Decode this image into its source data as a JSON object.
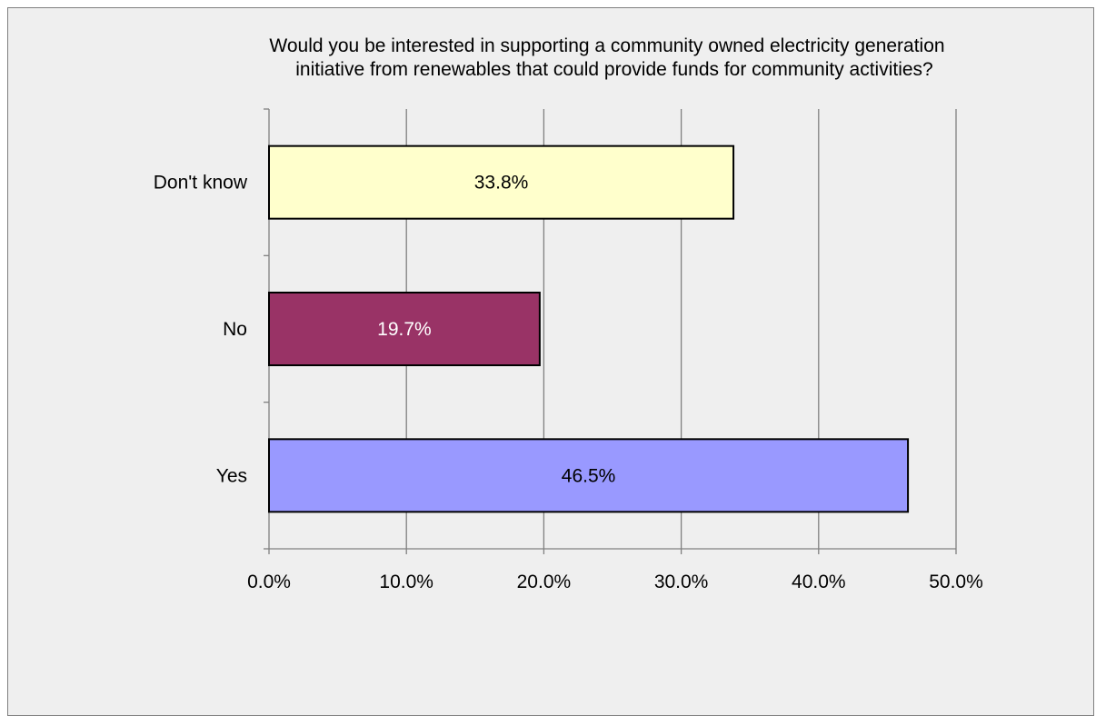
{
  "chart_data": {
    "type": "bar",
    "orientation": "horizontal",
    "title_lines": [
      "Would you be interested in supporting a community owned electricity generation",
      "initiative from renewables that could provide funds for community activities?"
    ],
    "categories": [
      "Don't know",
      "No",
      "Yes"
    ],
    "values": [
      33.8,
      19.7,
      46.5
    ],
    "value_labels": [
      "33.8%",
      "19.7%",
      "46.5%"
    ],
    "bar_colors": [
      "#ffffcc",
      "#993366",
      "#9999ff"
    ],
    "label_colors": [
      "#000000",
      "#ffffff",
      "#000000"
    ],
    "xlim": [
      0,
      50
    ],
    "xticks": [
      "0.0%",
      "10.0%",
      "20.0%",
      "30.0%",
      "40.0%",
      "50.0%"
    ],
    "grid": true,
    "legend": "none",
    "background": "#efefef"
  }
}
